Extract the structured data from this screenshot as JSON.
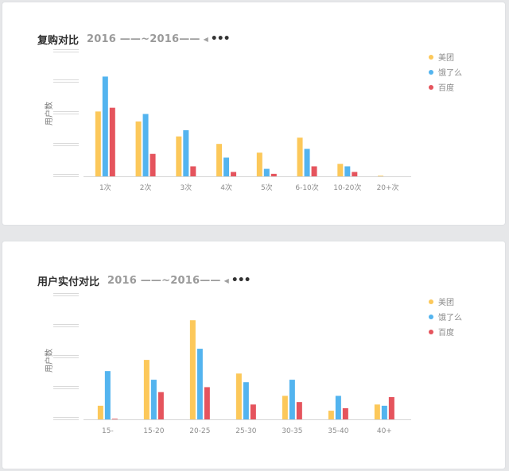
{
  "colors": {
    "meituan": "#fcc85a",
    "eleme": "#53b4ef",
    "baidu": "#e5545d",
    "axis": "#d6d6d6",
    "tick_text": "#8c8c8c"
  },
  "legend": [
    "美团",
    "饿了么",
    "百度"
  ],
  "chart_data": [
    {
      "type": "bar",
      "title": "复购对比",
      "date_range": "2016 ——~2016——",
      "ylabel": "用户数",
      "xlabel": "",
      "categories": [
        "1次",
        "2次",
        "3次",
        "4次",
        "5次",
        "6-10次",
        "10-20次",
        "20+次"
      ],
      "series": [
        {
          "name": "美团",
          "values": [
            52,
            44,
            32,
            26,
            19,
            31,
            10,
            0.5
          ]
        },
        {
          "name": "饿了么",
          "values": [
            80,
            50,
            37,
            15,
            6,
            22,
            8,
            0
          ]
        },
        {
          "name": "百度",
          "values": [
            55,
            18,
            8,
            3.5,
            2,
            8,
            3.5,
            0
          ]
        }
      ],
      "ylim": [
        0,
        100
      ],
      "legend_position": "top-right"
    },
    {
      "type": "bar",
      "title": "用户实付对比",
      "date_range": "2016 ——~2016——",
      "ylabel": "用户数",
      "xlabel": "",
      "categories": [
        "15-",
        "15-20",
        "20-25",
        "25-30",
        "30-35",
        "35-40",
        "40+"
      ],
      "series": [
        {
          "name": "美团",
          "values": [
            11,
            48,
            80,
            37,
            19,
            7,
            12
          ]
        },
        {
          "name": "饿了么",
          "values": [
            39,
            32,
            57,
            30,
            32,
            19,
            11
          ]
        },
        {
          "name": "百度",
          "values": [
            0.5,
            22,
            26,
            12,
            14,
            9,
            18
          ]
        }
      ],
      "ylim": [
        0,
        100
      ],
      "legend_position": "top-right"
    }
  ]
}
